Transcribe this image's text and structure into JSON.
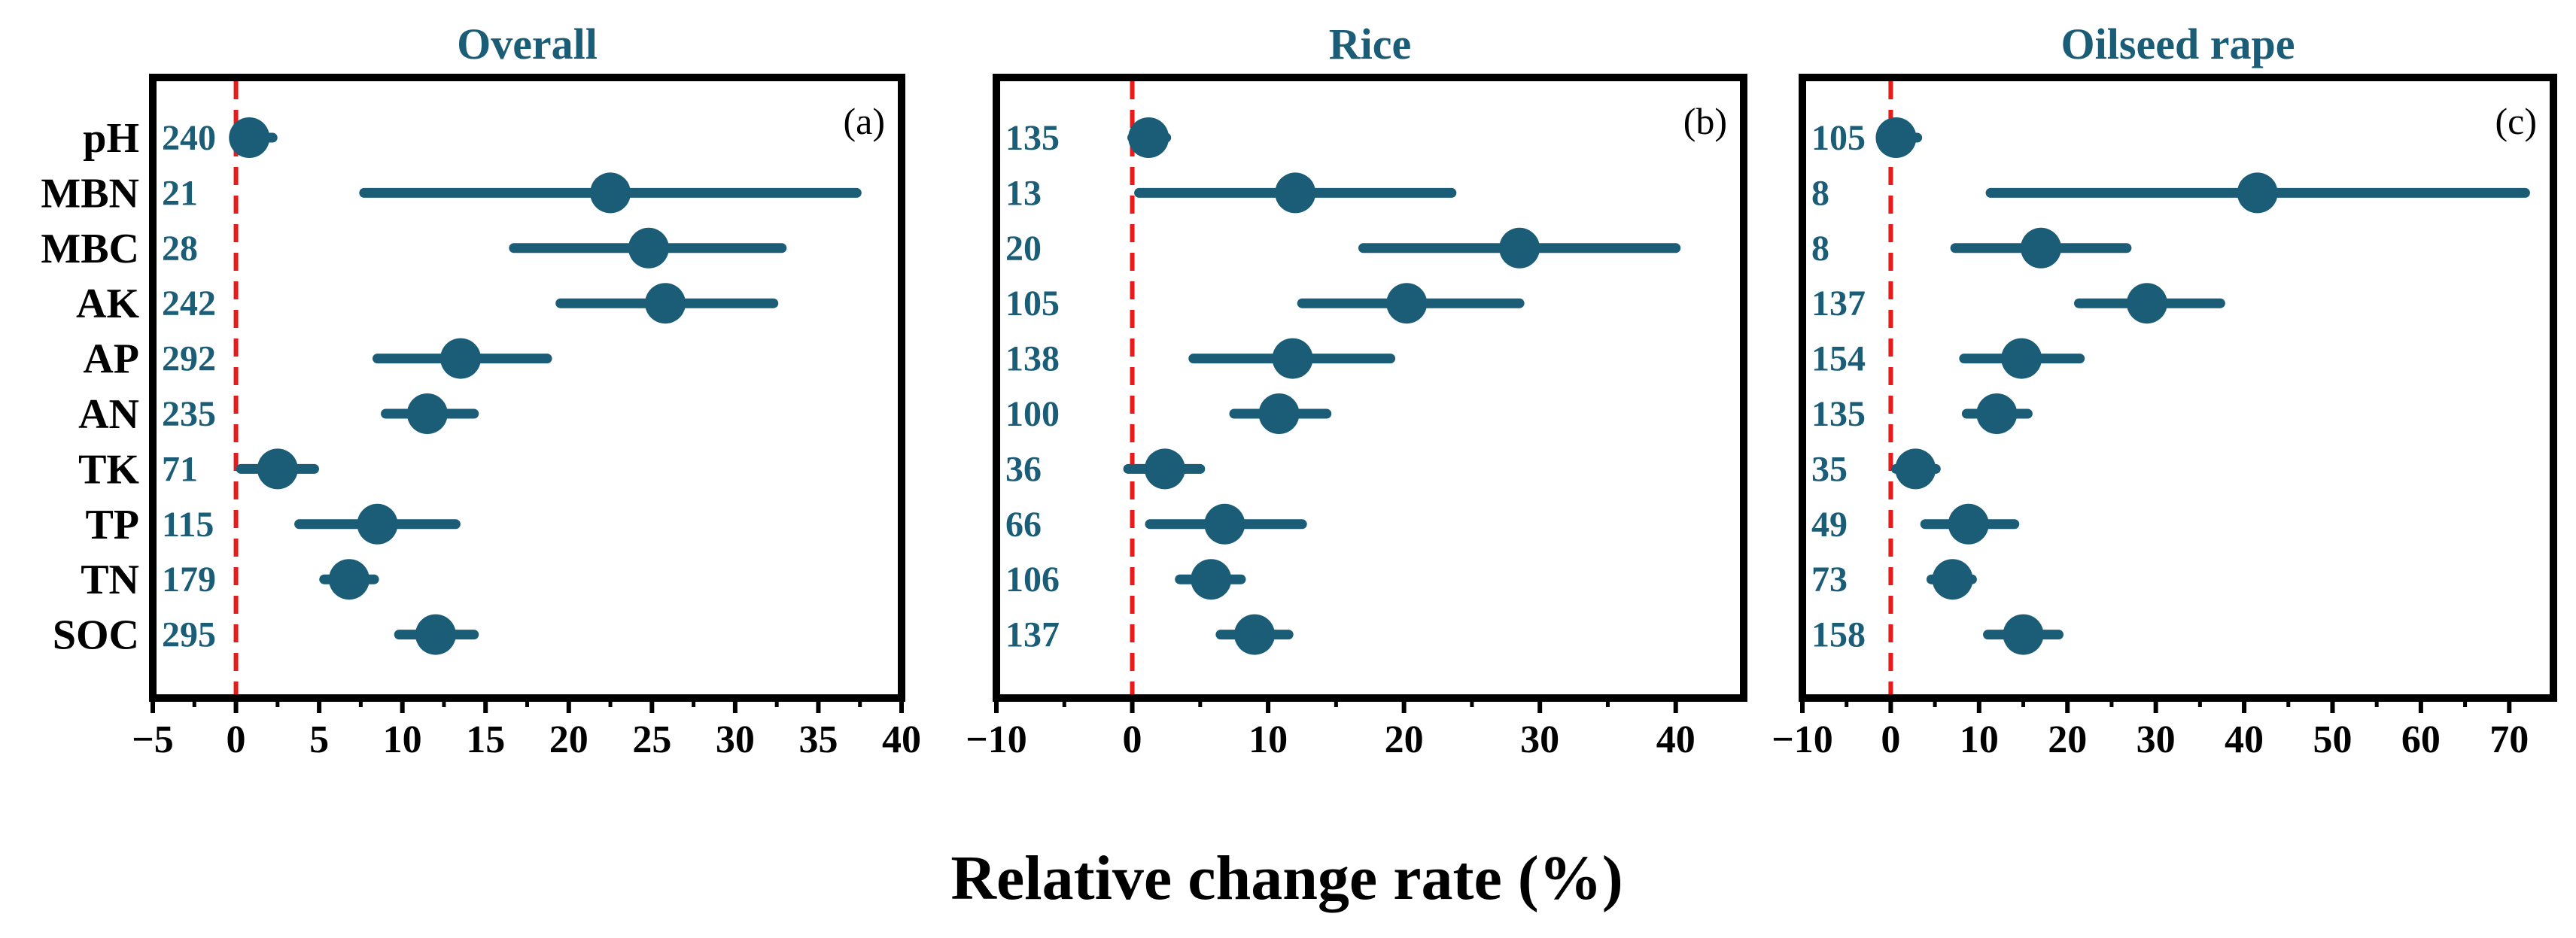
{
  "colors": {
    "mark": "#1b5d77",
    "reference_line": "#e81b1b",
    "title": "#1b5d77",
    "frame": "#000000"
  },
  "chart_data": {
    "type": "forest",
    "xlabel": "Relative change rate (%)",
    "categories": [
      "pH",
      "MBN",
      "MBC",
      "AK",
      "AP",
      "AN",
      "TK",
      "TP",
      "TN",
      "SOC"
    ],
    "reference_line": 0,
    "panels": [
      {
        "title": "Overall",
        "letter": "(a)",
        "xlim": [
          -5,
          40
        ],
        "xticks": [
          -5,
          0,
          5,
          10,
          15,
          20,
          25,
          30,
          35,
          40
        ],
        "xtick_labels": [
          "−5",
          "0",
          "5",
          "10",
          "15",
          "20",
          "25",
          "30",
          "35",
          "40"
        ],
        "n": [
          "240",
          "21",
          "28",
          "242",
          "292",
          "235",
          "71",
          "115",
          "179",
          "295"
        ],
        "mean": [
          0.8,
          22.5,
          24.8,
          25.8,
          13.5,
          11.5,
          2.5,
          8.5,
          6.8,
          12
        ],
        "ci_low": [
          0,
          7.7,
          16.7,
          19.5,
          8.5,
          9,
          0.3,
          3.8,
          5.3,
          9.8
        ],
        "ci_high": [
          2.2,
          37.3,
          32.8,
          32.3,
          18.7,
          14.3,
          4.7,
          13.2,
          8.3,
          14.3
        ]
      },
      {
        "title": "Rice",
        "letter": "(b)",
        "xlim": [
          -10,
          45
        ],
        "xticks": [
          -10,
          0,
          10,
          20,
          30,
          40
        ],
        "xtick_labels": [
          "−10",
          "0",
          "10",
          "20",
          "30",
          "40"
        ],
        "n": [
          "135",
          "13",
          "20",
          "105",
          "138",
          "100",
          "36",
          "66",
          "106",
          "137"
        ],
        "mean": [
          1.2,
          12,
          28.5,
          20.2,
          11.8,
          10.8,
          2.4,
          6.8,
          5.8,
          9
        ],
        "ci_low": [
          0,
          0.5,
          17,
          12.5,
          4.5,
          7.5,
          -0.3,
          1.3,
          3.5,
          6.5
        ],
        "ci_high": [
          2.5,
          23.5,
          40,
          28.5,
          19,
          14.3,
          5,
          12.5,
          8,
          11.5
        ]
      },
      {
        "title": "Oilseed rape",
        "letter": "(c)",
        "xlim": [
          -10,
          75
        ],
        "xticks": [
          -10,
          0,
          10,
          20,
          30,
          40,
          50,
          60,
          70
        ],
        "xtick_labels": [
          "−10",
          "0",
          "10",
          "20",
          "30",
          "40",
          "50",
          "60",
          "70"
        ],
        "n": [
          "105",
          "8",
          "8",
          "137",
          "154",
          "135",
          "35",
          "49",
          "73",
          "158"
        ],
        "mean": [
          0.6,
          41.5,
          17,
          29,
          14.8,
          12,
          2.8,
          8.8,
          7,
          15
        ],
        "ci_low": [
          0,
          11.3,
          7.3,
          21.3,
          8.3,
          8.6,
          0.6,
          3.9,
          4.6,
          11
        ],
        "ci_high": [
          3,
          71.8,
          26.7,
          37.3,
          21.4,
          15.5,
          5.1,
          14,
          9.2,
          19
        ]
      }
    ]
  }
}
